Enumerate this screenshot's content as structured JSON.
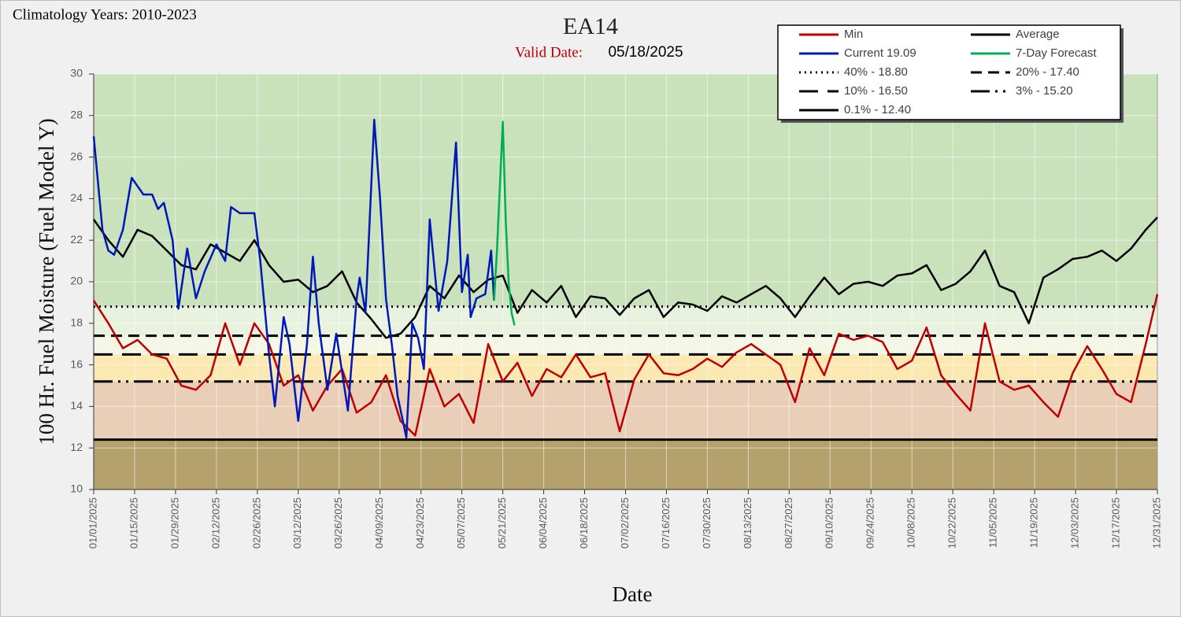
{
  "chart_data": {
    "type": "line",
    "title": "EA14",
    "subtitle": "Climatology Years: 2010-2023",
    "valid_date_label": "Valid Date:",
    "valid_date": "05/18/2025",
    "y_label": "100 Hr. Fuel Moisture (Fuel Model Y)",
    "x_label": "Date",
    "xlim": [
      "01/01/2025",
      "12/31/2025"
    ],
    "xticks": [
      "01/01/2025",
      "01/15/2025",
      "01/29/2025",
      "02/12/2025",
      "02/26/2025",
      "03/12/2025",
      "03/26/2025",
      "04/09/2025",
      "04/23/2025",
      "05/07/2025",
      "05/21/2025",
      "06/04/2025",
      "06/18/2025",
      "07/02/2025",
      "07/16/2025",
      "07/30/2025",
      "08/13/2025",
      "08/27/2025",
      "09/10/2025",
      "09/24/2025",
      "10/08/2025",
      "10/22/2025",
      "11/05/2025",
      "11/19/2025",
      "12/03/2025",
      "12/17/2025",
      "12/31/2025"
    ],
    "ylim": [
      10,
      30
    ],
    "yticks": [
      10,
      12,
      14,
      16,
      18,
      20,
      22,
      24,
      26,
      28,
      30
    ],
    "grid": true,
    "floor_band_color": "#b5a16c",
    "x": [
      "01/01/2025",
      "01/06/2025",
      "01/11/2025",
      "01/16/2025",
      "01/21/2025",
      "01/26/2025",
      "01/31/2025",
      "02/05/2025",
      "02/10/2025",
      "02/15/2025",
      "02/20/2025",
      "02/25/2025",
      "03/02/2025",
      "03/07/2025",
      "03/12/2025",
      "03/17/2025",
      "03/22/2025",
      "03/27/2025",
      "04/01/2025",
      "04/06/2025",
      "04/11/2025",
      "04/16/2025",
      "04/21/2025",
      "04/26/2025",
      "05/01/2025",
      "05/06/2025",
      "05/11/2025",
      "05/16/2025",
      "05/21/2025",
      "05/26/2025",
      "05/31/2025",
      "06/05/2025",
      "06/10/2025",
      "06/15/2025",
      "06/20/2025",
      "06/25/2025",
      "06/30/2025",
      "07/05/2025",
      "07/10/2025",
      "07/15/2025",
      "07/20/2025",
      "07/25/2025",
      "07/30/2025",
      "08/04/2025",
      "08/09/2025",
      "08/14/2025",
      "08/19/2025",
      "08/24/2025",
      "08/29/2025",
      "09/03/2025",
      "09/08/2025",
      "09/13/2025",
      "09/18/2025",
      "09/23/2025",
      "09/28/2025",
      "10/03/2025",
      "10/08/2025",
      "10/13/2025",
      "10/18/2025",
      "10/23/2025",
      "10/28/2025",
      "11/02/2025",
      "11/07/2025",
      "11/12/2025",
      "11/17/2025",
      "11/22/2025",
      "11/27/2025",
      "12/02/2025",
      "12/07/2025",
      "12/12/2025",
      "12/17/2025",
      "12/22/2025",
      "12/27/2025",
      "12/31/2025"
    ],
    "series": [
      {
        "name": "Min",
        "color": "#c00000",
        "values": [
          19.1,
          18.0,
          16.8,
          17.2,
          16.5,
          16.3,
          15.0,
          14.8,
          15.5,
          18.0,
          16.0,
          18.0,
          17.0,
          15.0,
          15.5,
          13.8,
          15.0,
          15.8,
          13.7,
          14.2,
          15.5,
          13.3,
          12.6,
          15.8,
          14.0,
          14.6,
          13.2,
          17.0,
          15.2,
          16.1,
          14.5,
          15.8,
          15.4,
          16.5,
          15.4,
          15.6,
          12.8,
          15.3,
          16.5,
          15.6,
          15.5,
          15.8,
          16.3,
          15.9,
          16.6,
          17.0,
          16.5,
          16.0,
          14.2,
          16.8,
          15.5,
          17.5,
          17.2,
          17.4,
          17.1,
          15.8,
          16.2,
          17.8,
          15.5,
          14.6,
          13.8,
          18.0,
          15.2,
          14.8,
          15.0,
          14.2,
          13.5,
          15.6,
          16.9,
          15.8,
          14.6,
          14.2,
          17.0,
          19.4
        ]
      },
      {
        "name": "Average",
        "color": "#000000",
        "values": [
          23.0,
          22.0,
          21.2,
          22.5,
          22.2,
          21.5,
          20.8,
          20.6,
          21.8,
          21.4,
          21.0,
          22.0,
          20.8,
          20.0,
          20.1,
          19.5,
          19.8,
          20.5,
          19.0,
          18.2,
          17.3,
          17.5,
          18.3,
          19.8,
          19.2,
          20.3,
          19.5,
          20.1,
          20.3,
          18.5,
          19.6,
          19.0,
          19.8,
          18.3,
          19.3,
          19.2,
          18.4,
          19.2,
          19.6,
          18.3,
          19.0,
          18.9,
          18.6,
          19.3,
          19.0,
          19.4,
          19.8,
          19.2,
          18.3,
          19.3,
          20.2,
          19.4,
          19.9,
          20.0,
          19.8,
          20.3,
          20.4,
          20.8,
          19.6,
          19.9,
          20.5,
          21.5,
          19.8,
          19.5,
          18.0,
          20.2,
          20.6,
          21.1,
          21.2,
          21.5,
          21.0,
          21.6,
          22.5,
          23.1
        ]
      },
      {
        "name": "Current 19.09",
        "color": "#0018b8",
        "x": [
          "01/01/2025",
          "01/04/2025",
          "01/06/2025",
          "01/08/2025",
          "01/11/2025",
          "01/14/2025",
          "01/18/2025",
          "01/21/2025",
          "01/23/2025",
          "01/25/2025",
          "01/28/2025",
          "01/30/2025",
          "02/02/2025",
          "02/05/2025",
          "02/08/2025",
          "02/12/2025",
          "02/15/2025",
          "02/17/2025",
          "02/20/2025",
          "02/25/2025",
          "02/27/2025",
          "03/02/2025",
          "03/04/2025",
          "03/07/2025",
          "03/09/2025",
          "03/12/2025",
          "03/15/2025",
          "03/17/2025",
          "03/19/2025",
          "03/22/2025",
          "03/25/2025",
          "03/29/2025",
          "04/01/2025",
          "04/02/2025",
          "04/04/2025",
          "04/07/2025",
          "04/09/2025",
          "04/11/2025",
          "04/13/2025",
          "04/15/2025",
          "04/18/2025",
          "04/20/2025",
          "04/22/2025",
          "04/24/2025",
          "04/26/2025",
          "04/29/2025",
          "05/02/2025",
          "05/05/2025",
          "05/07/2025",
          "05/09/2025",
          "05/10/2025",
          "05/12/2025",
          "05/15/2025",
          "05/17/2025",
          "05/18/2025"
        ],
        "values": [
          27.0,
          22.5,
          21.5,
          21.3,
          22.5,
          25.0,
          24.2,
          24.2,
          23.5,
          23.8,
          22.0,
          18.7,
          21.6,
          19.2,
          20.5,
          21.8,
          21.0,
          23.6,
          23.3,
          23.3,
          21.0,
          16.5,
          14.0,
          18.3,
          17.0,
          13.3,
          17.0,
          21.2,
          18.0,
          14.8,
          17.5,
          13.8,
          19.2,
          20.2,
          18.5,
          27.8,
          24.0,
          19.2,
          17.0,
          14.5,
          12.5,
          18.0,
          17.3,
          15.8,
          23.0,
          18.6,
          21.0,
          26.7,
          19.5,
          21.3,
          18.3,
          19.2,
          19.4,
          21.5,
          19.09
        ]
      },
      {
        "name": "7-Day Forecast",
        "color": "#00b050",
        "x": [
          "05/18/2025",
          "05/19/2025",
          "05/21/2025",
          "05/22/2025",
          "05/23/2025",
          "05/24/2025",
          "05/25/2025"
        ],
        "values": [
          19.09,
          21.5,
          27.7,
          23.0,
          20.0,
          18.5,
          17.9
        ]
      }
    ],
    "thresholds": [
      {
        "name": "40% -  18.80",
        "value": 18.8,
        "style": "dotted",
        "band_color": "#c9e2bc"
      },
      {
        "name": "20% -  17.40",
        "value": 17.4,
        "style": "dashed",
        "band_color": "#e8f2df"
      },
      {
        "name": "10% -  16.50",
        "value": 16.5,
        "style": "long-dash",
        "band_color": "#f4f6e6"
      },
      {
        "name": "3% -  15.20",
        "value": 15.2,
        "style": "long-dash-dot-dot",
        "band_color": "#fbe8b2"
      },
      {
        "name": "0.1% -  12.40",
        "value": 12.4,
        "style": "solid",
        "band_color": "#e9cfb8"
      }
    ]
  }
}
